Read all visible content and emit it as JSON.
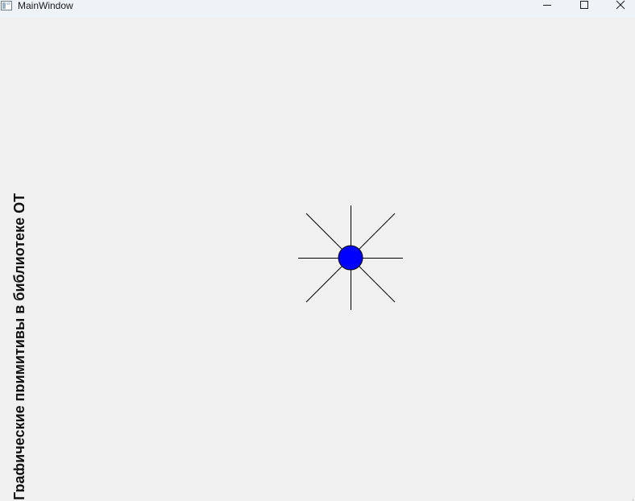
{
  "window": {
    "title": "MainWindow",
    "background_color": "#f0f0f0",
    "titlebar_color": "#eef3f8"
  },
  "titlebar_buttons": {
    "minimize_icon": "minimize-icon",
    "maximize_icon": "maximize-icon",
    "close_icon": "close-icon"
  },
  "content": {
    "vertical_label": "Графические примитивы в библиотеке QT",
    "figure": {
      "shape": "circle-with-eight-rays",
      "fill_color": "#0000ff",
      "stroke_color": "#000000",
      "ray_count": 8
    }
  }
}
